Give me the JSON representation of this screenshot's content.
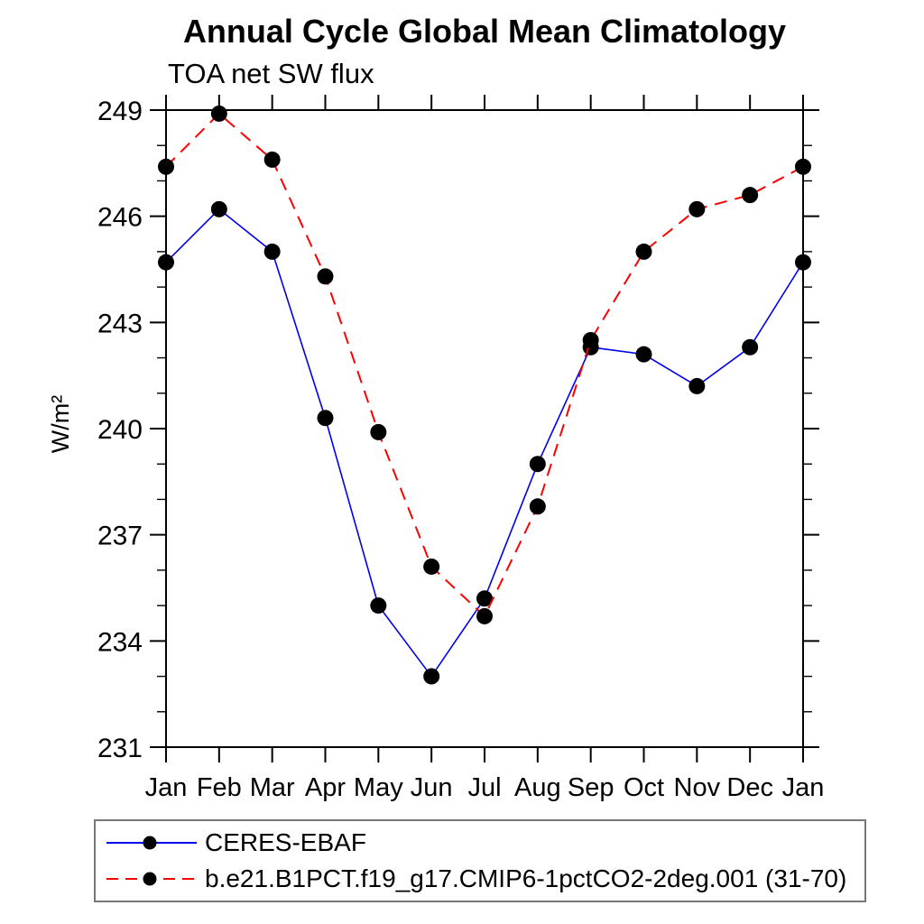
{
  "title": "Annual Cycle Global Mean Climatology",
  "subtitle": "TOA net SW flux",
  "ylabel": "W/m²",
  "chart_data": {
    "type": "line",
    "categories": [
      "Jan",
      "Feb",
      "Mar",
      "Apr",
      "May",
      "Jun",
      "Jul",
      "Aug",
      "Sep",
      "Oct",
      "Nov",
      "Dec",
      "Jan"
    ],
    "series": [
      {
        "name": "CERES-EBAF",
        "color": "#0000ee",
        "line_style": "solid",
        "marker": "black-dot",
        "values": [
          244.7,
          246.2,
          245.0,
          240.3,
          235.0,
          233.0,
          235.2,
          239.0,
          242.3,
          242.1,
          241.2,
          242.3,
          244.7
        ]
      },
      {
        "name": "b.e21.B1PCT.f19_g17.CMIP6-1pctCO2-2deg.001 (31-70)",
        "color": "#ff0000",
        "line_style": "dashed",
        "marker": "black-dot",
        "values": [
          247.4,
          248.9,
          247.6,
          244.3,
          239.9,
          236.1,
          234.7,
          237.8,
          242.5,
          245.0,
          246.2,
          246.6,
          247.4
        ]
      }
    ],
    "ylim": [
      231,
      249
    ],
    "yticks_major": [
      231,
      234,
      237,
      240,
      243,
      246,
      249
    ],
    "ytick_minor_step": 1,
    "marker_color": "#000000",
    "axis_color": "#000000",
    "legend_position": "bottom",
    "grid": false
  }
}
